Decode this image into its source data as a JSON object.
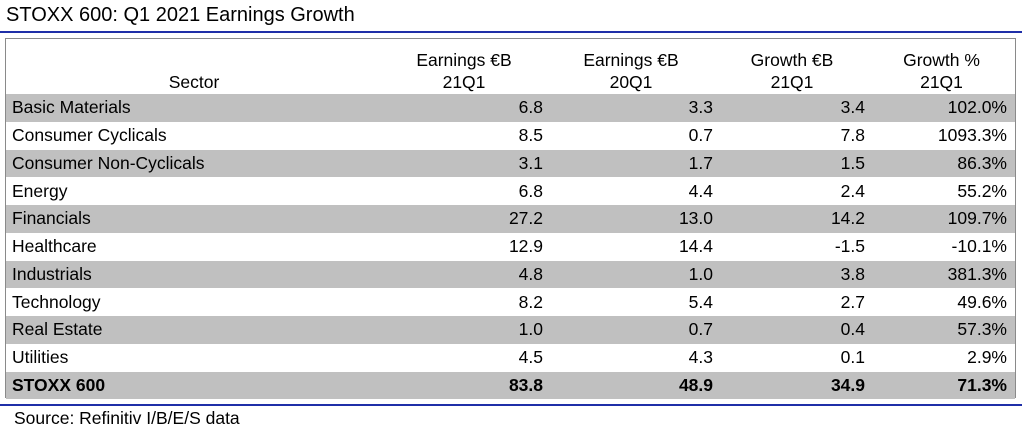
{
  "title": "STOXX 600: Q1 2021 Earnings Growth",
  "source": "Source: Refinitiv I/B/E/S data",
  "colors": {
    "rule": "#1f2fa8",
    "row_shade": "#c0c0c0",
    "frame": "#8a8a8a"
  },
  "chart_data": {
    "type": "table",
    "title": "STOXX 600: Q1 2021 Earnings Growth",
    "columns": [
      {
        "line1": "",
        "line2": "Sector"
      },
      {
        "line1": "Earnings €B",
        "line2": "21Q1"
      },
      {
        "line1": "Earnings €B",
        "line2": "20Q1"
      },
      {
        "line1": "Growth €B",
        "line2": "21Q1"
      },
      {
        "line1": "Growth %",
        "line2": "21Q1"
      }
    ],
    "rows": [
      {
        "sector": "Basic Materials",
        "earnings_21q1": "6.8",
        "earnings_20q1": "3.3",
        "growth_eur": "3.4",
        "growth_pct": "102.0%"
      },
      {
        "sector": "Consumer Cyclicals",
        "earnings_21q1": "8.5",
        "earnings_20q1": "0.7",
        "growth_eur": "7.8",
        "growth_pct": "1093.3%"
      },
      {
        "sector": "Consumer Non-Cyclicals",
        "earnings_21q1": "3.1",
        "earnings_20q1": "1.7",
        "growth_eur": "1.5",
        "growth_pct": "86.3%"
      },
      {
        "sector": "Energy",
        "earnings_21q1": "6.8",
        "earnings_20q1": "4.4",
        "growth_eur": "2.4",
        "growth_pct": "55.2%"
      },
      {
        "sector": "Financials",
        "earnings_21q1": "27.2",
        "earnings_20q1": "13.0",
        "growth_eur": "14.2",
        "growth_pct": "109.7%"
      },
      {
        "sector": "Healthcare",
        "earnings_21q1": "12.9",
        "earnings_20q1": "14.4",
        "growth_eur": "-1.5",
        "growth_pct": "-10.1%"
      },
      {
        "sector": "Industrials",
        "earnings_21q1": "4.8",
        "earnings_20q1": "1.0",
        "growth_eur": "3.8",
        "growth_pct": "381.3%"
      },
      {
        "sector": "Technology",
        "earnings_21q1": "8.2",
        "earnings_20q1": "5.4",
        "growth_eur": "2.7",
        "growth_pct": "49.6%"
      },
      {
        "sector": "Real Estate",
        "earnings_21q1": "1.0",
        "earnings_20q1": "0.7",
        "growth_eur": "0.4",
        "growth_pct": "57.3%"
      },
      {
        "sector": "Utilities",
        "earnings_21q1": "4.5",
        "earnings_20q1": "4.3",
        "growth_eur": "0.1",
        "growth_pct": "2.9%"
      }
    ],
    "total": {
      "sector": "STOXX 600",
      "earnings_21q1": "83.8",
      "earnings_20q1": "48.9",
      "growth_eur": "34.9",
      "growth_pct": "71.3%"
    }
  }
}
